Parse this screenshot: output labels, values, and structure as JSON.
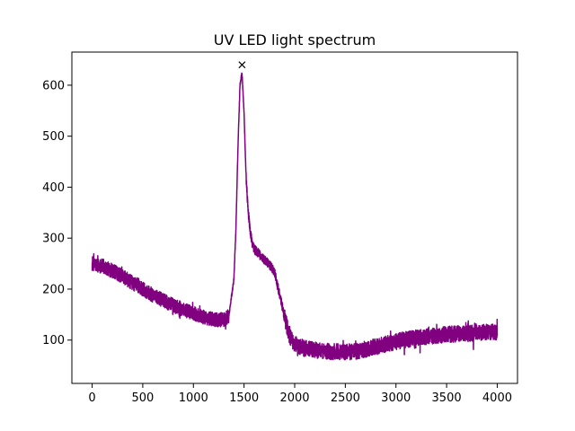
{
  "chart_data": {
    "type": "line",
    "title": "UV LED light spectrum",
    "xlabel": "",
    "ylabel": "",
    "xlim": [
      -200,
      4200
    ],
    "ylim": [
      15,
      665
    ],
    "grid": false,
    "legend": "none",
    "x_ticks": [
      0,
      500,
      1000,
      1500,
      2000,
      2500,
      3000,
      3500,
      4000
    ],
    "x_tick_labels": [
      "0",
      "500",
      "1000",
      "1500",
      "2000",
      "2500",
      "3000",
      "3500",
      "4000"
    ],
    "y_ticks": [
      100,
      200,
      300,
      400,
      500,
      600
    ],
    "y_tick_labels": [
      "100",
      "200",
      "300",
      "400",
      "500",
      "600"
    ],
    "series": [
      {
        "color": "#800080",
        "x": [
          0,
          50,
          100,
          150,
          200,
          300,
          400,
          500,
          600,
          700,
          800,
          900,
          1000,
          1100,
          1200,
          1300,
          1350,
          1400,
          1420,
          1440,
          1460,
          1480,
          1500,
          1520,
          1540,
          1560,
          1580,
          1600,
          1650,
          1700,
          1750,
          1800,
          1850,
          1900,
          1950,
          2000,
          2050,
          2100,
          2200,
          2300,
          2400,
          2500,
          2600,
          2700,
          2800,
          2900,
          3000,
          3100,
          3200,
          3300,
          3400,
          3500,
          3600,
          3700,
          3800,
          3900,
          4000
        ],
        "y": [
          248,
          247,
          245,
          240,
          236,
          225,
          212,
          200,
          188,
          178,
          168,
          160,
          153,
          145,
          140,
          140,
          148,
          220,
          320,
          480,
          600,
          625,
          545,
          420,
          355,
          315,
          290,
          280,
          268,
          258,
          248,
          235,
          190,
          145,
          108,
          92,
          87,
          84,
          80,
          78,
          77,
          76,
          78,
          82,
          87,
          92,
          97,
          101,
          104,
          107,
          109,
          111,
          112,
          113,
          114,
          115,
          116
        ]
      }
    ],
    "annotations": [
      {
        "type": "marker",
        "symbol": "x",
        "x": 1480,
        "y": 640,
        "color": "#000000"
      }
    ]
  }
}
